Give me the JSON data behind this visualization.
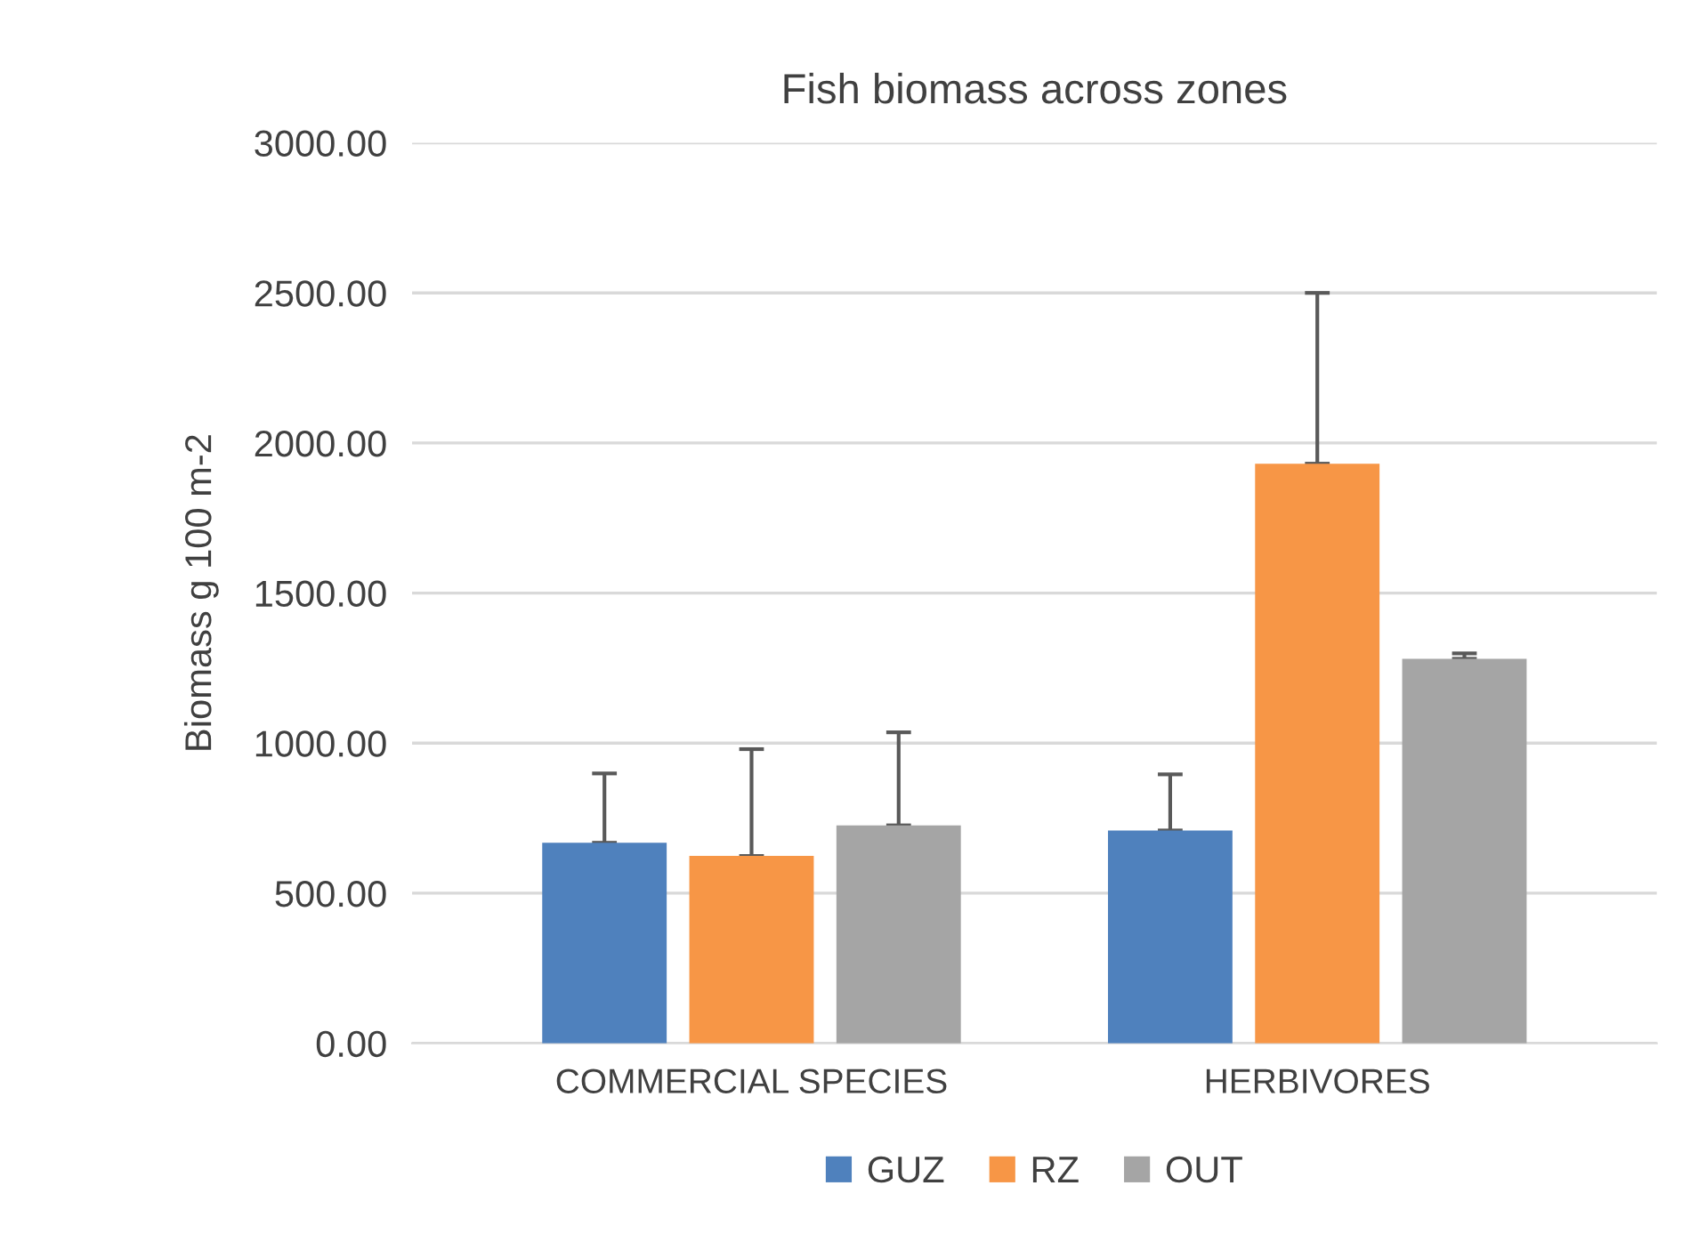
{
  "chart_data": {
    "type": "bar",
    "title": "Fish biomass across zones",
    "ylabel": "Biomass g 100 m-2",
    "categories": [
      "COMMERCIAL SPECIES",
      "HERBIVORES"
    ],
    "series": [
      {
        "name": "GUZ",
        "color": "#4f81bd",
        "values": [
          668,
          709
        ],
        "errors": [
          [
            668,
            899
          ],
          [
            709,
            896
          ]
        ]
      },
      {
        "name": "RZ",
        "color": "#f79646",
        "values": [
          624,
          1931
        ],
        "errors": [
          [
            624,
            980
          ],
          [
            1931,
            2500
          ]
        ]
      },
      {
        "name": "OUT",
        "color": "#a5a5a5",
        "values": [
          726,
          1281
        ],
        "errors": [
          [
            726,
            1036
          ],
          [
            1281,
            1299
          ]
        ]
      }
    ],
    "ylim": [
      0,
      3000
    ],
    "yticks": [
      {
        "value": 0,
        "label": "0.00"
      },
      {
        "value": 500,
        "label": "500.00"
      },
      {
        "value": 1000,
        "label": "1000.00"
      },
      {
        "value": 1500,
        "label": "1500.00"
      },
      {
        "value": 2000,
        "label": "2000.00"
      },
      {
        "value": 2500,
        "label": "2500.00"
      },
      {
        "value": 3000,
        "label": "3000.00"
      }
    ],
    "grid": "y",
    "legend": "bottom"
  }
}
